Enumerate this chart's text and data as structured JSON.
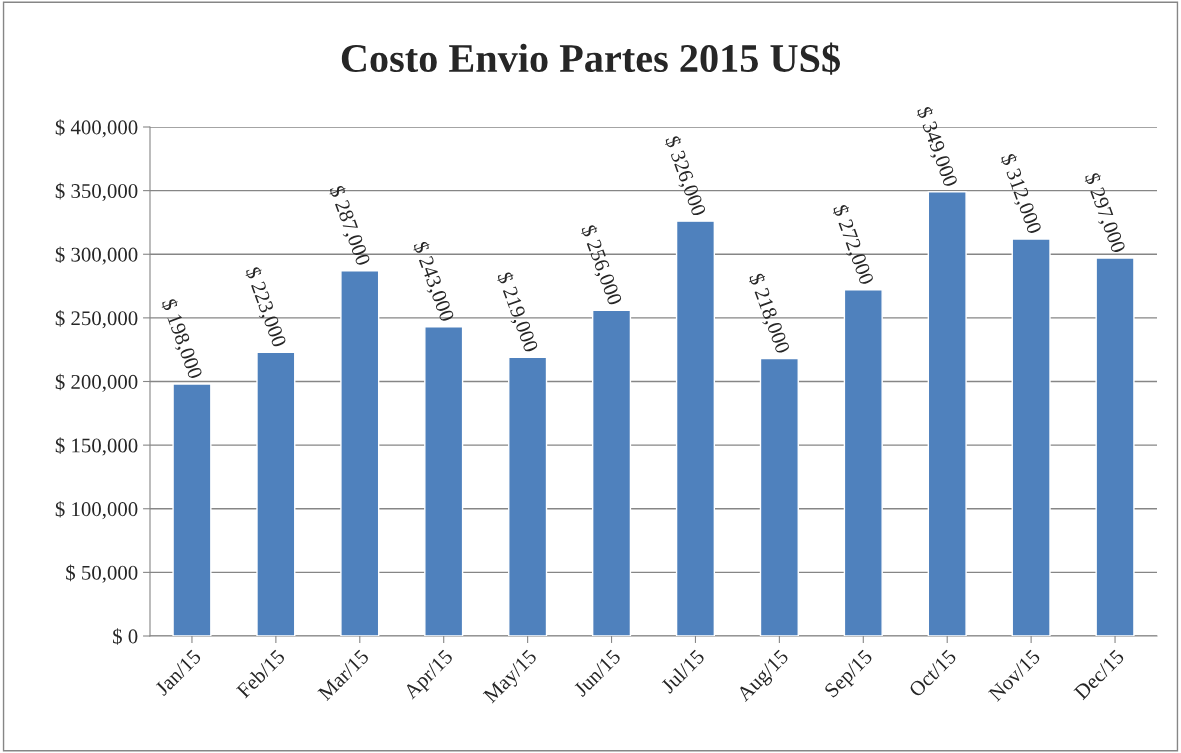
{
  "chart_data": {
    "type": "bar",
    "title": "Costo Envio Partes 2015 US$",
    "categories": [
      "Jan/15",
      "Feb/15",
      "Mar/15",
      "Apr/15",
      "May/15",
      "Jun/15",
      "Jul/15",
      "Aug/15",
      "Sep/15",
      "Oct/15",
      "Nov/15",
      "Dec/15"
    ],
    "values": [
      198000,
      223000,
      287000,
      243000,
      219000,
      256000,
      326000,
      218000,
      272000,
      349000,
      312000,
      297000
    ],
    "value_labels": [
      "$ 198,000",
      "$ 223,000",
      "$ 287,000",
      "$ 243,000",
      "$ 219,000",
      "$ 256,000",
      "$ 326,000",
      "$ 218,000",
      "$ 272,000",
      "$ 349,000",
      "$ 312,000",
      "$ 297,000"
    ],
    "color": "#4f81bd",
    "ylim": [
      0,
      400000
    ],
    "yticks": [
      {
        "value": 0,
        "label": "$ 0"
      },
      {
        "value": 50000,
        "label": "$ 50,000"
      },
      {
        "value": 100000,
        "label": "$ 100,000"
      },
      {
        "value": 150000,
        "label": "$ 150,000"
      },
      {
        "value": 200000,
        "label": "$ 200,000"
      },
      {
        "value": 250000,
        "label": "$ 250,000"
      },
      {
        "value": 300000,
        "label": "$ 300,000"
      },
      {
        "value": 350000,
        "label": "$ 350,000"
      },
      {
        "value": 400000,
        "label": "$ 400,000"
      }
    ],
    "grid": "y",
    "legend": false
  }
}
